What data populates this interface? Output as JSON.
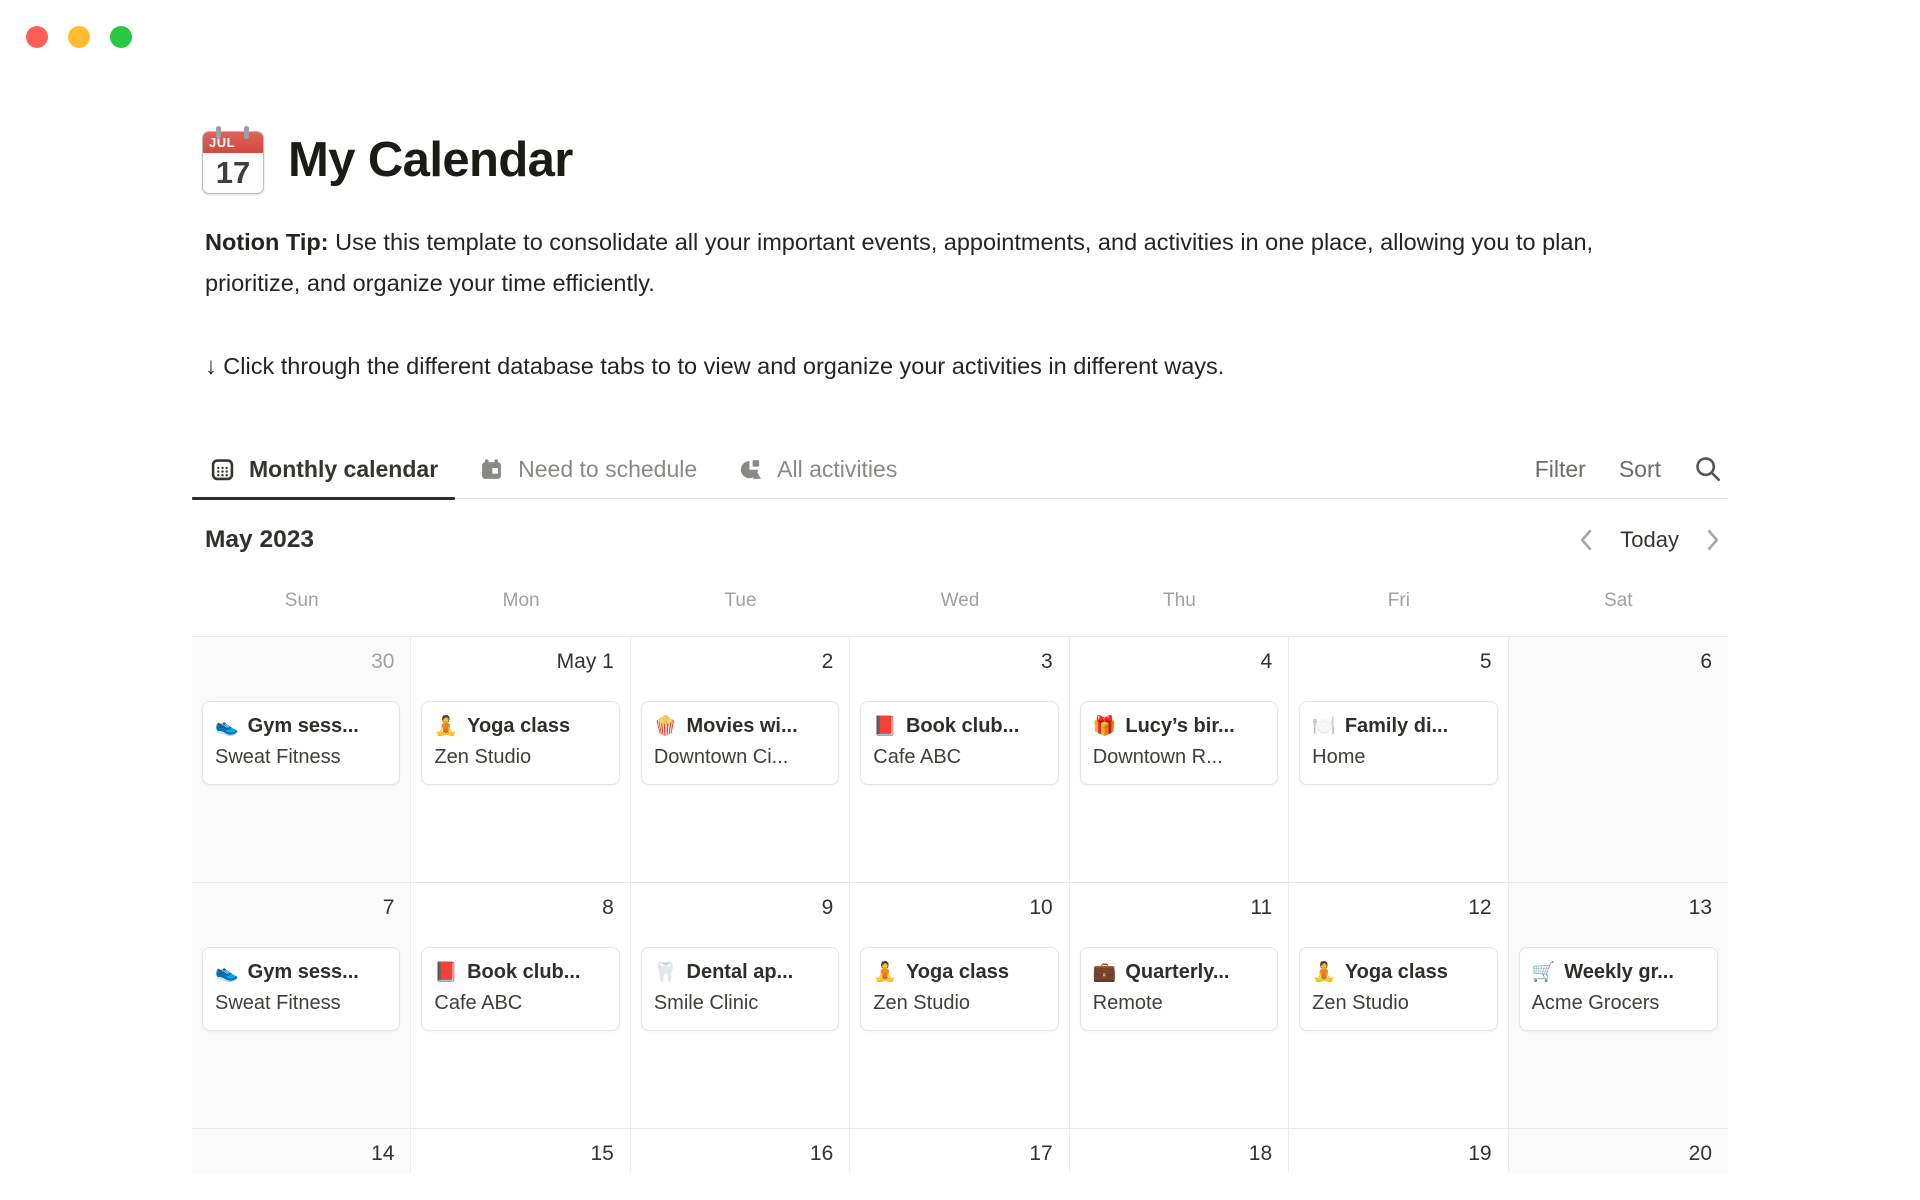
{
  "window": {
    "controls": [
      {
        "name": "close",
        "color": "#ff5f57"
      },
      {
        "name": "minimize",
        "color": "#febc2e"
      },
      {
        "name": "zoom",
        "color": "#28c840"
      }
    ]
  },
  "header": {
    "page_icon": {
      "name": "tear-off-calendar-icon",
      "month": "JUL",
      "day": "17"
    },
    "title": "My Calendar",
    "tip_bold": "Notion Tip:",
    "tip_rest": "Use this template to consolidate all your important events, appointments, and activities in one place, allowing you to plan, prioritize, and organize your time efficiently.",
    "instruction": "↓ Click through the different database tabs to to view and organize your activities in different ways."
  },
  "tabs": [
    {
      "label": "Monthly calendar",
      "icon": "calendar-grid-icon",
      "active": true
    },
    {
      "label": "Need to schedule",
      "icon": "calendar-solid-icon",
      "active": false
    },
    {
      "label": "All activities",
      "icon": "mixed-shapes-database-icon",
      "active": false
    }
  ],
  "toolbar": {
    "filter_label": "Filter",
    "sort_label": "Sort",
    "search_icon": "magnifier-icon"
  },
  "calendar": {
    "month_label": "May 2023",
    "today_label": "Today",
    "prev_icon": "chevron-left-icon",
    "next_icon": "chevron-right-icon",
    "weekday_headers": [
      "Sun",
      "Mon",
      "Tue",
      "Wed",
      "Thu",
      "Fri",
      "Sat"
    ],
    "weeks": [
      {
        "days": [
          {
            "date": "30",
            "muted": true,
            "event": {
              "emoji": "👟",
              "title": "Gym sess...",
              "location": "Sweat Fitness"
            }
          },
          {
            "date": "May 1",
            "event": {
              "emoji": "🧘",
              "title": "Yoga class",
              "location": "Zen Studio"
            }
          },
          {
            "date": "2",
            "event": {
              "emoji": "🍿",
              "title": "Movies wi...",
              "location": "Downtown Ci..."
            }
          },
          {
            "date": "3",
            "event": {
              "emoji": "📕",
              "title": "Book club...",
              "location": "Cafe ABC"
            }
          },
          {
            "date": "4",
            "event": {
              "emoji": "🎁",
              "title": "Lucy’s bir...",
              "location": "Downtown R..."
            }
          },
          {
            "date": "5",
            "event": {
              "emoji": "🍽️",
              "title": "Family di...",
              "location": "Home"
            }
          },
          {
            "date": "6"
          }
        ]
      },
      {
        "days": [
          {
            "date": "7",
            "event": {
              "emoji": "👟",
              "title": "Gym sess...",
              "location": "Sweat Fitness"
            }
          },
          {
            "date": "8",
            "event": {
              "emoji": "📕",
              "title": "Book club...",
              "location": "Cafe ABC"
            }
          },
          {
            "date": "9",
            "event": {
              "emoji": "🦷",
              "title": "Dental ap...",
              "location": "Smile Clinic"
            }
          },
          {
            "date": "10",
            "event": {
              "emoji": "🧘",
              "title": "Yoga class",
              "location": "Zen Studio"
            }
          },
          {
            "date": "11",
            "event": {
              "emoji": "💼",
              "title": "Quarterly...",
              "location": "Remote"
            }
          },
          {
            "date": "12",
            "event": {
              "emoji": "🧘",
              "title": "Yoga class",
              "location": "Zen Studio"
            }
          },
          {
            "date": "13",
            "event": {
              "emoji": "🛒",
              "title": "Weekly gr...",
              "location": "Acme Grocers"
            }
          }
        ]
      },
      {
        "days": [
          {
            "date": "14"
          },
          {
            "date": "15"
          },
          {
            "date": "16"
          },
          {
            "date": "17"
          },
          {
            "date": "18"
          },
          {
            "date": "19"
          },
          {
            "date": "20"
          }
        ]
      }
    ]
  },
  "colors": {
    "text_dark": "#37352f",
    "text_gray": "#8a8985",
    "border": "#e9e9e7",
    "weekend_bg": "#fafafa",
    "active_underline": "#2f2e2b",
    "traffic_red": "#ff5f57",
    "traffic_yellow": "#febc2e",
    "traffic_green": "#28c840"
  }
}
